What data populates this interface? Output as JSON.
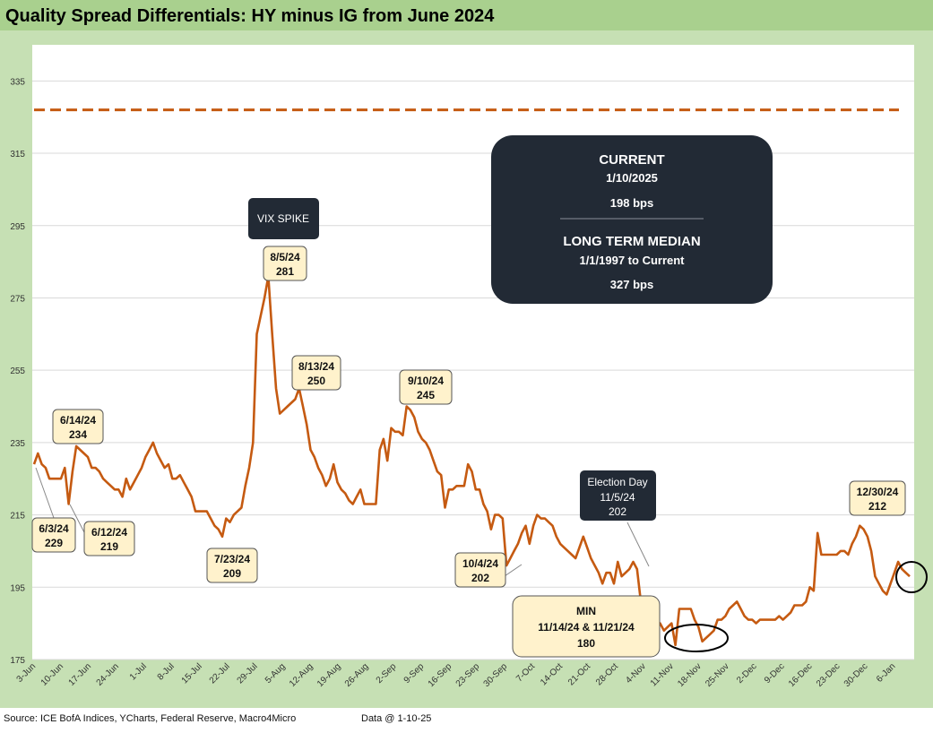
{
  "title": "Quality Spread Differentials: HY minus IG from June 2024",
  "footer": {
    "source": "Source: ICE BofA Indices, YCharts, Federal Reserve, Macro4Micro",
    "data_date": "Data @ 1-10-25"
  },
  "colors": {
    "title_bg": "#a9d08e",
    "frame": "#c6e0b4",
    "series": "#c55a11",
    "median_line": "#c55a11",
    "note_bg": "#fff2cc",
    "dark_box": "#222a35"
  },
  "chart_data": {
    "type": "line",
    "ylim": [
      175,
      345
    ],
    "yticks": [
      175,
      195,
      215,
      235,
      255,
      275,
      295,
      315,
      335
    ],
    "grid": true,
    "x_start_date": "2024-06-03",
    "x_end_date": "2025-01-10",
    "x_tick_labels": [
      "3-Jun",
      "10-Jun",
      "17-Jun",
      "24-Jun",
      "1-Jul",
      "8-Jul",
      "15-Jul",
      "22-Jul",
      "29-Jul",
      "5-Aug",
      "12-Aug",
      "19-Aug",
      "26-Aug",
      "2-Sep",
      "9-Sep",
      "16-Sep",
      "23-Sep",
      "30-Sep",
      "7-Oct",
      "14-Oct",
      "21-Oct",
      "28-Oct",
      "4-Nov",
      "11-Nov",
      "18-Nov",
      "25-Nov",
      "2-Dec",
      "9-Dec",
      "16-Dec",
      "23-Dec",
      "30-Dec",
      "6-Jan"
    ],
    "median": 327,
    "series": [
      {
        "values": [
          229,
          232,
          229,
          228,
          225,
          225,
          225,
          225,
          228,
          218,
          227,
          234,
          233,
          232,
          231,
          228,
          228,
          227,
          225,
          224,
          223,
          222,
          222,
          220,
          225,
          222,
          224,
          226,
          228,
          231,
          233,
          235,
          232,
          230,
          228,
          229,
          225,
          225,
          226,
          224,
          222,
          220,
          216,
          216,
          216,
          216,
          214,
          212,
          211,
          209,
          214,
          213,
          215,
          216,
          217,
          223,
          228,
          235,
          265,
          270,
          275,
          281,
          265,
          250,
          243,
          244,
          245,
          246,
          247,
          250,
          245,
          240,
          233,
          231,
          228,
          226,
          223,
          225,
          229,
          224,
          222,
          221,
          219,
          218,
          220,
          222,
          218,
          218,
          218,
          218,
          233,
          236,
          230,
          239,
          238,
          238,
          237,
          245,
          244,
          242,
          238,
          236,
          235,
          233,
          230,
          227,
          226,
          217,
          222,
          222,
          223,
          223,
          223,
          229,
          227,
          222,
          222,
          218,
          216,
          211,
          215,
          215,
          214,
          201,
          203,
          205,
          207,
          210,
          212,
          207,
          212,
          215,
          214,
          214,
          213,
          212,
          209,
          207,
          206,
          205,
          204,
          203,
          206,
          209,
          206,
          203,
          201,
          199,
          196,
          199,
          199,
          196,
          202,
          198,
          199,
          200,
          202,
          200,
          191,
          191,
          185,
          185,
          185,
          185,
          183,
          184,
          185,
          179,
          189,
          189,
          189,
          189,
          186,
          184,
          180,
          181,
          182,
          183,
          186,
          186,
          187,
          189,
          190,
          191,
          189,
          187,
          186,
          186,
          185,
          186,
          186,
          186,
          186,
          186,
          187,
          186,
          187,
          188,
          190,
          190,
          190,
          191,
          195,
          194,
          210,
          204,
          204,
          204,
          204,
          204,
          205,
          205,
          204,
          207,
          209,
          212,
          211,
          209,
          205,
          198,
          196,
          194,
          193,
          196,
          199,
          202,
          200,
          199,
          198
        ]
      }
    ],
    "annotations": [
      {
        "date": "6/3/24",
        "value": "229"
      },
      {
        "date": "6/12/24",
        "value": "219"
      },
      {
        "date": "6/14/24",
        "value": "234"
      },
      {
        "date": "7/23/24",
        "value": "209"
      },
      {
        "date": "8/5/24",
        "value": "281"
      },
      {
        "date": "8/13/24",
        "value": "250"
      },
      {
        "date": "9/10/24",
        "value": "245"
      },
      {
        "date": "10/4/24",
        "value": "202"
      },
      {
        "date": "12/30/24",
        "value": "212"
      }
    ],
    "vix_label": "VIX SPIKE",
    "election": {
      "title": "Election Day",
      "date": "11/5/24",
      "value": "202"
    },
    "min_box": {
      "title": "MIN",
      "dates": "11/14/24 & 11/21/24",
      "value": "180"
    },
    "info_box": {
      "current_label": "CURRENT",
      "current_date": "1/10/2025",
      "current_value": "198 bps",
      "median_label": "LONG TERM MEDIAN",
      "median_range": "1/1/1997 to Current",
      "median_value": "327 bps"
    }
  }
}
